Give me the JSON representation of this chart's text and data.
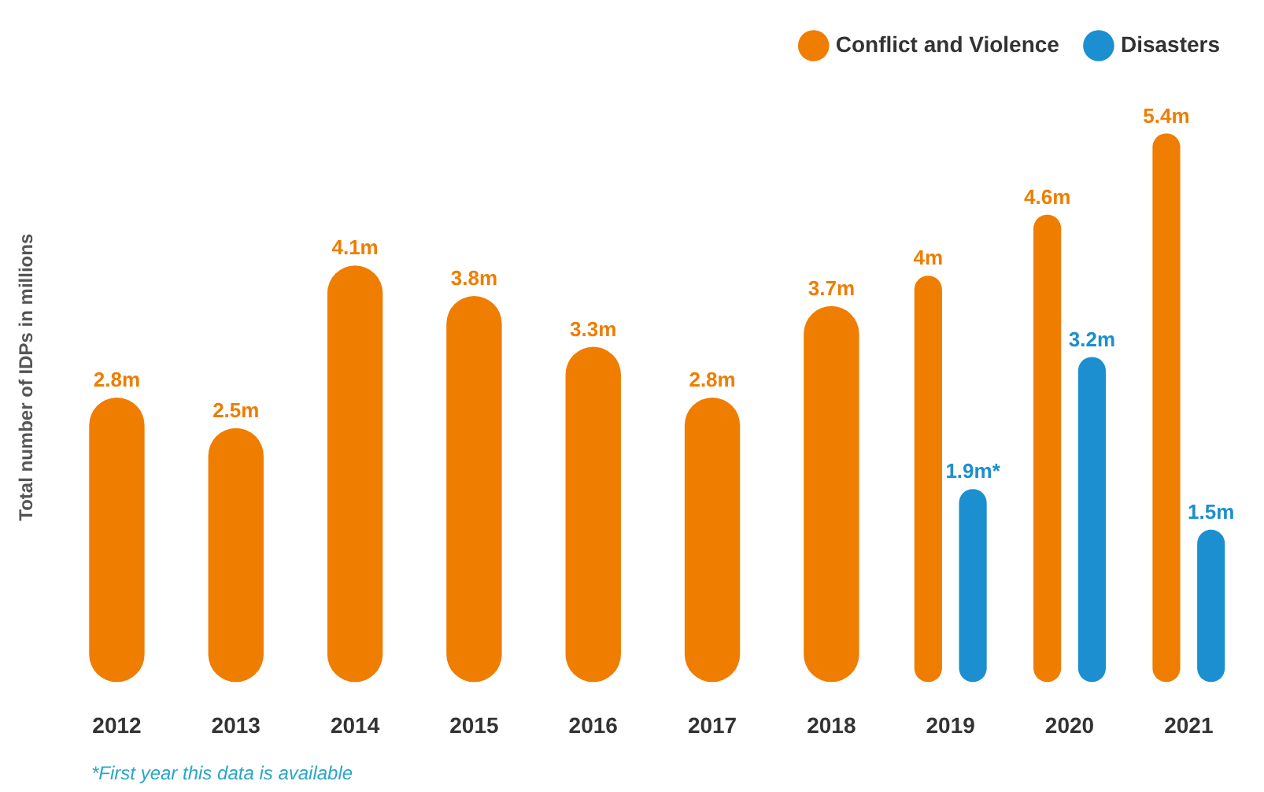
{
  "chart_data": {
    "type": "bar",
    "ylabel": "Total number of IDPs in millions",
    "categories": [
      "2012",
      "2013",
      "2014",
      "2015",
      "2016",
      "2017",
      "2018",
      "2019",
      "2020",
      "2021"
    ],
    "series": [
      {
        "name": "Conflict and Violence",
        "color": "#ef7d00",
        "values": [
          2.8,
          2.5,
          4.1,
          3.8,
          3.3,
          2.8,
          3.7,
          4,
          4.6,
          5.4
        ],
        "value_labels": [
          "2.8m",
          "2.5m",
          "4.1m",
          "3.8m",
          "3.3m",
          "2.8m",
          "3.7m",
          "4m",
          "4.6m",
          "5.4m"
        ]
      },
      {
        "name": "Disasters",
        "color": "#1b8fcf",
        "values": [
          null,
          null,
          null,
          null,
          null,
          null,
          null,
          1.9,
          3.2,
          1.5
        ],
        "value_labels": [
          null,
          null,
          null,
          null,
          null,
          null,
          null,
          "1.9m*",
          "3.2m",
          "1.5m"
        ]
      }
    ],
    "tick_labels": "x",
    "grid": false,
    "legend": "top right",
    "annotations": [
      "*First year this data is available"
    ]
  }
}
